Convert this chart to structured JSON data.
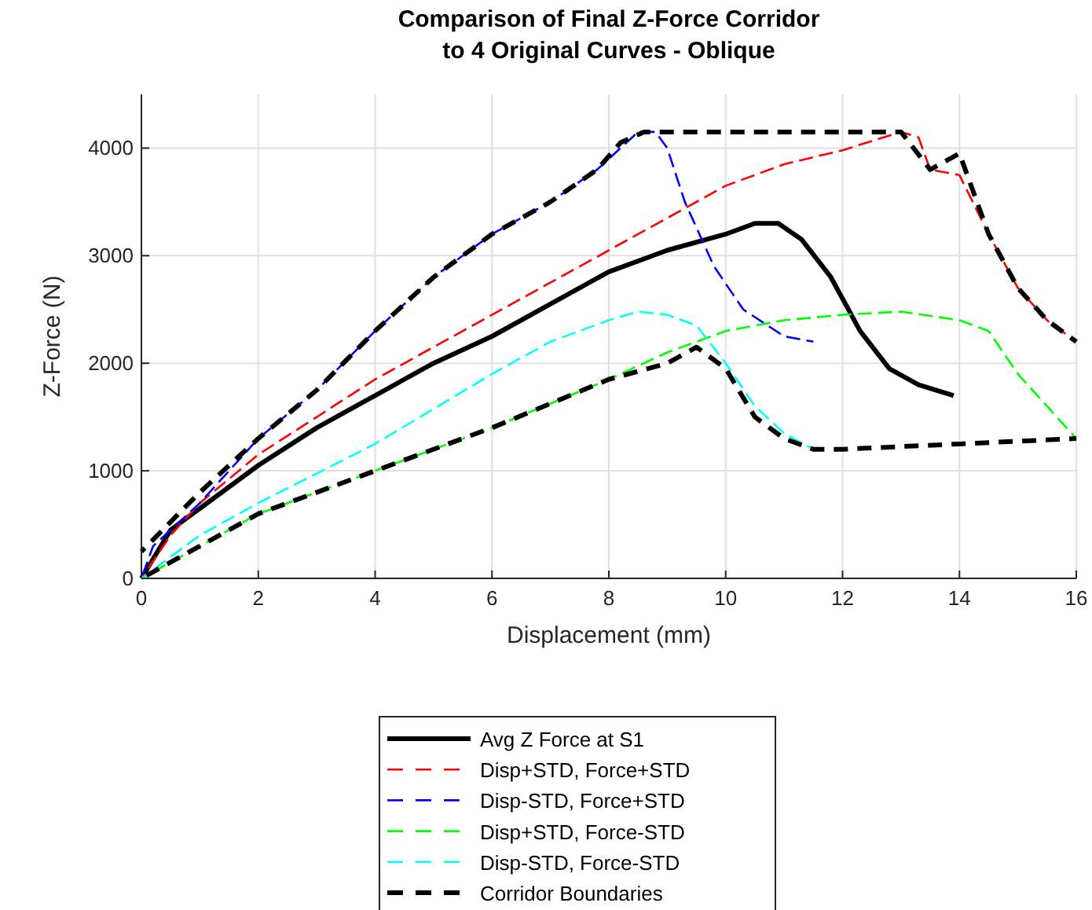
{
  "chart_data": {
    "type": "line",
    "title": "Comparison of Final Z-Force Corridor\nto 4 Original Curves - Oblique",
    "xlabel": "Displacement (mm)",
    "ylabel": "Z-Force (N)",
    "xlim": [
      0,
      16
    ],
    "ylim": [
      0,
      4500
    ],
    "xticks": [
      0,
      2,
      4,
      6,
      8,
      10,
      12,
      14,
      16
    ],
    "yticks": [
      0,
      1000,
      2000,
      3000,
      4000
    ],
    "grid": true,
    "legend": "bottom",
    "series": [
      {
        "name": "Avg Z Force at S1",
        "color": "#000000",
        "line_style": "solid",
        "x": [
          0,
          0.5,
          1,
          2,
          3,
          4,
          5,
          6,
          7,
          8,
          9,
          10,
          10.5,
          10.9,
          11.3,
          11.8,
          12.3,
          12.8,
          13.3,
          13.9
        ],
        "values": [
          0,
          450,
          650,
          1050,
          1400,
          1700,
          2000,
          2250,
          2550,
          2850,
          3050,
          3200,
          3300,
          3300,
          3150,
          2800,
          2300,
          1950,
          1800,
          1700
        ]
      },
      {
        "name": "Disp+STD, Force+STD",
        "color": "#ff0000",
        "line_style": "dashed",
        "x": [
          0,
          0.5,
          1,
          2,
          4,
          6,
          8,
          9,
          10,
          11,
          12,
          13,
          13.3,
          13.5,
          14,
          14.5,
          15,
          15.5,
          16
        ],
        "values": [
          0,
          400,
          700,
          1150,
          1850,
          2450,
          3050,
          3350,
          3650,
          3850,
          3980,
          4150,
          4100,
          3800,
          3750,
          3200,
          2700,
          2400,
          2200
        ]
      },
      {
        "name": "Disp-STD, Force+STD",
        "color": "#0000ff",
        "line_style": "dashed",
        "x": [
          0,
          0.2,
          1,
          2,
          3,
          4,
          5,
          6,
          7,
          7.8,
          8.2,
          8.5,
          8.8,
          9,
          9.3,
          9.8,
          10.3,
          11,
          11.5
        ],
        "values": [
          0,
          300,
          700,
          1300,
          1750,
          2300,
          2800,
          3200,
          3500,
          3800,
          4000,
          4150,
          4150,
          4000,
          3500,
          2900,
          2500,
          2250,
          2200
        ]
      },
      {
        "name": "Disp+STD, Force-STD",
        "color": "#00ff00",
        "line_style": "dashed",
        "x": [
          0,
          1,
          2,
          4,
          6,
          8,
          9,
          10,
          11,
          12,
          13,
          14,
          14.5,
          15,
          15.5,
          16
        ],
        "values": [
          0,
          300,
          600,
          1000,
          1400,
          1850,
          2100,
          2300,
          2400,
          2450,
          2480,
          2400,
          2300,
          1900,
          1600,
          1300
        ]
      },
      {
        "name": "Disp-STD, Force-STD",
        "color": "#00ffff",
        "line_style": "dashed",
        "x": [
          0,
          1,
          2,
          4,
          6,
          7,
          8,
          8.5,
          9,
          9.5,
          10,
          10.5,
          11,
          11.5
        ],
        "values": [
          0,
          400,
          700,
          1250,
          1900,
          2200,
          2400,
          2480,
          2450,
          2350,
          2000,
          1600,
          1350,
          1200
        ]
      },
      {
        "name": "Corridor Boundaries",
        "color": "#000000",
        "line_style": "dashed",
        "x": [
          0,
          1,
          2,
          3,
          4,
          5,
          6,
          7,
          7.8,
          8.2,
          8.6,
          10,
          12,
          13,
          13.5,
          14,
          14.5,
          15,
          15.5,
          16
        ],
        "values": [
          250,
          800,
          1300,
          1750,
          2300,
          2800,
          3200,
          3500,
          3800,
          4050,
          4150,
          4150,
          4150,
          4150,
          3800,
          3950,
          3200,
          2700,
          2400,
          2200
        ]
      },
      {
        "color": "#000000",
        "line_style": "dashed",
        "x": [
          0,
          1,
          2,
          4,
          6,
          8,
          9,
          9.5,
          10,
          10.5,
          11,
          11.5,
          12,
          14,
          16
        ],
        "values": [
          0,
          300,
          600,
          1000,
          1400,
          1850,
          2000,
          2150,
          1950,
          1500,
          1300,
          1200,
          1200,
          1250,
          1300
        ]
      }
    ]
  }
}
